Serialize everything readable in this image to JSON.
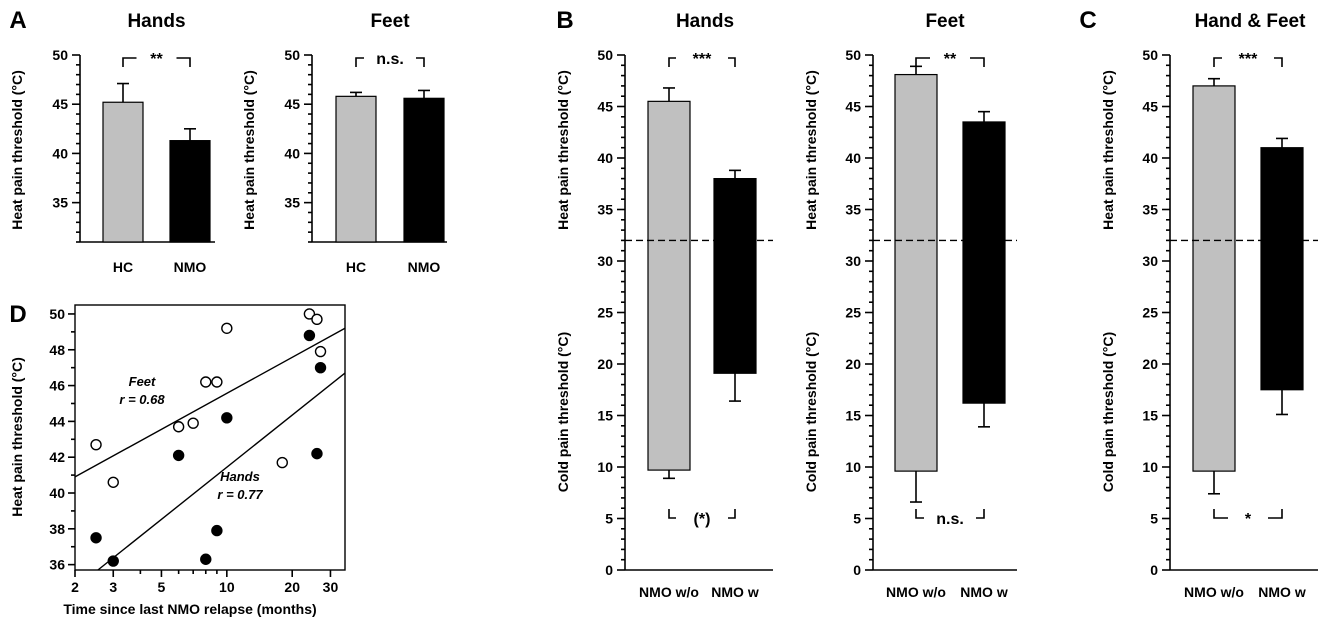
{
  "colors": {
    "hc_bar": "#c0c0c0",
    "nmo_bar": "#000000",
    "nmo_without_bar": "#c0c0c0",
    "nmo_with_bar": "#000000",
    "feet_marker": "#ffffff",
    "hands_marker": "#000000"
  },
  "chart_data": [
    {
      "id": "A-hands",
      "panel": "A",
      "type": "bar",
      "title": "Hands",
      "ylabel": "Heat pain threshold (°C)",
      "ylim": [
        31,
        50
      ],
      "yticks": [
        35,
        40,
        45,
        50
      ],
      "categories": [
        "HC",
        "NMO"
      ],
      "values": [
        45.2,
        41.3
      ],
      "errors": [
        1.9,
        1.2
      ],
      "significance": "**"
    },
    {
      "id": "A-feet",
      "panel": "",
      "type": "bar",
      "title": "Feet",
      "ylabel": "Heat pain threshold (°C)",
      "ylim": [
        31,
        50
      ],
      "yticks": [
        35,
        40,
        45,
        50
      ],
      "categories": [
        "HC",
        "NMO"
      ],
      "values": [
        45.8,
        45.6
      ],
      "errors": [
        0.4,
        0.8
      ],
      "significance": "n.s."
    },
    {
      "id": "B-hands",
      "panel": "B",
      "type": "bar",
      "title": "Hands",
      "baseline": 32,
      "ylim": [
        0,
        50
      ],
      "yticks": [
        0,
        5,
        10,
        15,
        20,
        25,
        30,
        35,
        40,
        45,
        50
      ],
      "ylabel_heat": "Heat pain threshold (°C)",
      "ylabel_cold": "Cold pain threshold (°C)",
      "categories": [
        "NMO w/o",
        "NMO w"
      ],
      "heat_values": [
        45.5,
        38.0
      ],
      "heat_errors": [
        1.3,
        0.8
      ],
      "cold_values": [
        9.7,
        19.1
      ],
      "cold_errors": [
        0.8,
        2.7
      ],
      "heat_significance": "***",
      "cold_significance": "(*)"
    },
    {
      "id": "B-feet",
      "panel": "",
      "type": "bar",
      "title": "Feet",
      "baseline": 32,
      "ylim": [
        0,
        50
      ],
      "yticks": [
        0,
        5,
        10,
        15,
        20,
        25,
        30,
        35,
        40,
        45,
        50
      ],
      "ylabel_heat": "Heat pain threshold (°C)",
      "ylabel_cold": "Cold pain threshold (°C)",
      "categories": [
        "NMO w/o",
        "NMO w"
      ],
      "heat_values": [
        48.1,
        43.5
      ],
      "heat_errors": [
        0.8,
        1.0
      ],
      "cold_values": [
        9.6,
        16.2
      ],
      "cold_errors": [
        3.0,
        2.3
      ],
      "heat_significance": "**",
      "cold_significance": "n.s."
    },
    {
      "id": "C-handfeet",
      "panel": "C",
      "type": "bar",
      "title": "Hand & Feet",
      "baseline": 32,
      "ylim": [
        0,
        50
      ],
      "yticks": [
        0,
        5,
        10,
        15,
        20,
        25,
        30,
        35,
        40,
        45,
        50
      ],
      "ylabel_heat": "Heat pain threshold (°C)",
      "ylabel_cold": "Cold pain threshold (°C)",
      "categories": [
        "NMO w/o",
        "NMO w"
      ],
      "heat_values": [
        47.0,
        41.0
      ],
      "heat_errors": [
        0.7,
        0.9
      ],
      "cold_values": [
        9.6,
        17.5
      ],
      "cold_errors": [
        2.2,
        2.4
      ],
      "heat_significance": "***",
      "cold_significance": "*"
    },
    {
      "id": "D-scatter",
      "panel": "D",
      "type": "scatter",
      "xscale": "log",
      "xlabel": "Time since last NMO relapse (months)",
      "ylabel": "Heat pain threshold (°C)",
      "xlim": [
        2,
        35
      ],
      "ylim": [
        35.7,
        50.5
      ],
      "xticks": [
        2,
        3,
        5,
        10,
        20,
        30
      ],
      "xtick_labels": [
        "2",
        "3",
        "5",
        "10",
        "20",
        "30"
      ],
      "yticks": [
        36,
        38,
        40,
        42,
        44,
        46,
        48,
        50
      ],
      "series": [
        {
          "name": "Feet",
          "marker": "open",
          "fit_label": "r = 0.68",
          "x": [
            2.5,
            3.0,
            6.0,
            7.0,
            8.0,
            9.0,
            10.0,
            18.0,
            24.0,
            26.0,
            27.0
          ],
          "y": [
            42.7,
            40.6,
            43.7,
            43.9,
            46.2,
            46.2,
            49.2,
            41.7,
            50.0,
            49.7,
            47.9
          ],
          "fit": {
            "x": [
              2.0,
              35.0
            ],
            "y": [
              40.9,
              49.2
            ]
          }
        },
        {
          "name": "Hands",
          "marker": "filled",
          "fit_label": "r = 0.77",
          "x": [
            2.5,
            3.0,
            6.0,
            8.0,
            9.0,
            10.0,
            24.0,
            26.0,
            27.0
          ],
          "y": [
            37.5,
            36.2,
            42.1,
            36.3,
            37.9,
            44.2,
            48.8,
            42.2,
            47.0
          ],
          "fit": {
            "x": [
              2.55,
              35.0
            ],
            "y": [
              35.7,
              46.7
            ]
          }
        }
      ]
    }
  ]
}
